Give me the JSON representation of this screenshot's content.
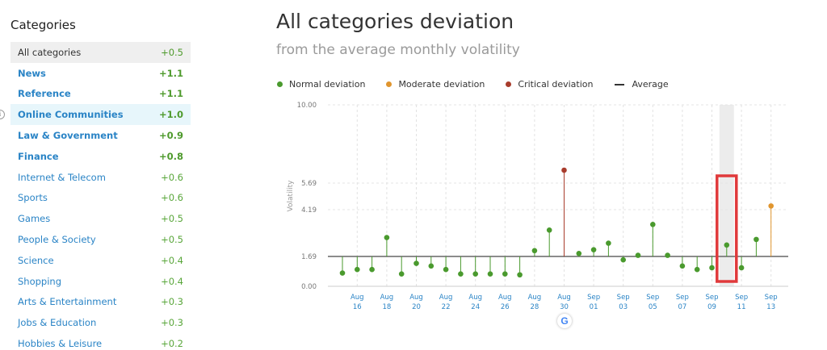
{
  "sidebar": {
    "title": "Categories",
    "items": [
      {
        "label": "All categories",
        "value": "+0.5",
        "style": "selected"
      },
      {
        "label": "News",
        "value": "+1.1",
        "style": "bold"
      },
      {
        "label": "Reference",
        "value": "+1.1",
        "style": "bold"
      },
      {
        "label": "Online Communities",
        "value": "+1.0",
        "style": "bold highlighted"
      },
      {
        "label": "Law & Government",
        "value": "+0.9",
        "style": "bold"
      },
      {
        "label": "Finance",
        "value": "+0.8",
        "style": "bold"
      },
      {
        "label": "Internet & Telecom",
        "value": "+0.6",
        "style": "plain"
      },
      {
        "label": "Sports",
        "value": "+0.6",
        "style": "plain"
      },
      {
        "label": "Games",
        "value": "+0.5",
        "style": "plain"
      },
      {
        "label": "People & Society",
        "value": "+0.5",
        "style": "plain"
      },
      {
        "label": "Science",
        "value": "+0.4",
        "style": "plain"
      },
      {
        "label": "Shopping",
        "value": "+0.4",
        "style": "plain"
      },
      {
        "label": "Arts & Entertainment",
        "value": "+0.3",
        "style": "plain"
      },
      {
        "label": "Jobs & Education",
        "value": "+0.3",
        "style": "plain"
      },
      {
        "label": "Hobbies & Leisure",
        "value": "+0.2",
        "style": "plain"
      }
    ]
  },
  "header": {
    "title": "All categories deviation",
    "subtitle": "from the average monthly volatility"
  },
  "legend": {
    "normal": "Normal deviation",
    "moderate": "Moderate deviation",
    "critical": "Critical deviation",
    "average": "Average"
  },
  "colors": {
    "normal": "#4a9a2e",
    "moderate": "#e0952e",
    "critical": "#a83c2c",
    "average": "#666666",
    "link": "#2a84c6",
    "highlight_box": "#e0393b"
  },
  "icons": {
    "google": "G",
    "info": "i"
  },
  "chart_data": {
    "type": "scatter",
    "ylabel": "Volatility",
    "yticks": [
      "0.00",
      "1.69",
      "4.19",
      "5.69",
      "10.00"
    ],
    "ylim": [
      0,
      10
    ],
    "average": 1.69,
    "x_tick_labels": [
      [
        "Aug",
        "16"
      ],
      [
        "Aug",
        "18"
      ],
      [
        "Aug",
        "20"
      ],
      [
        "Aug",
        "22"
      ],
      [
        "Aug",
        "24"
      ],
      [
        "Aug",
        "26"
      ],
      [
        "Aug",
        "28"
      ],
      [
        "Aug",
        "30"
      ],
      [
        "Sep",
        "01"
      ],
      [
        "Sep",
        "03"
      ],
      [
        "Sep",
        "05"
      ],
      [
        "Sep",
        "07"
      ],
      [
        "Sep",
        "09"
      ],
      [
        "Sep",
        "11"
      ],
      [
        "Sep",
        "13"
      ]
    ],
    "dates": [
      "Aug 15",
      "Aug 16",
      "Aug 17",
      "Aug 18",
      "Aug 19",
      "Aug 20",
      "Aug 21",
      "Aug 22",
      "Aug 23",
      "Aug 24",
      "Aug 25",
      "Aug 26",
      "Aug 27",
      "Aug 28",
      "Aug 29",
      "Aug 30",
      "Aug 31",
      "Sep 01",
      "Sep 02",
      "Sep 03",
      "Sep 04",
      "Sep 05",
      "Sep 06",
      "Sep 07",
      "Sep 08",
      "Sep 09",
      "Sep 10",
      "Sep 11",
      "Sep 12",
      "Sep 13"
    ],
    "values": [
      0.75,
      0.95,
      0.95,
      2.7,
      0.7,
      1.3,
      1.15,
      0.95,
      0.7,
      0.7,
      0.7,
      0.7,
      0.65,
      2.0,
      3.1,
      6.4,
      1.85,
      2.05,
      2.4,
      1.5,
      1.75,
      3.4,
      1.75,
      1.15,
      0.95,
      1.05,
      2.3,
      1.05,
      2.6,
      4.4
    ],
    "categories": [
      "normal",
      "normal",
      "normal",
      "normal",
      "normal",
      "normal",
      "normal",
      "normal",
      "normal",
      "normal",
      "normal",
      "normal",
      "normal",
      "normal",
      "normal",
      "critical",
      "normal",
      "normal",
      "normal",
      "normal",
      "normal",
      "normal",
      "normal",
      "normal",
      "normal",
      "normal",
      "normal",
      "normal",
      "normal",
      "moderate"
    ],
    "highlighted_date": "Sep 10"
  }
}
